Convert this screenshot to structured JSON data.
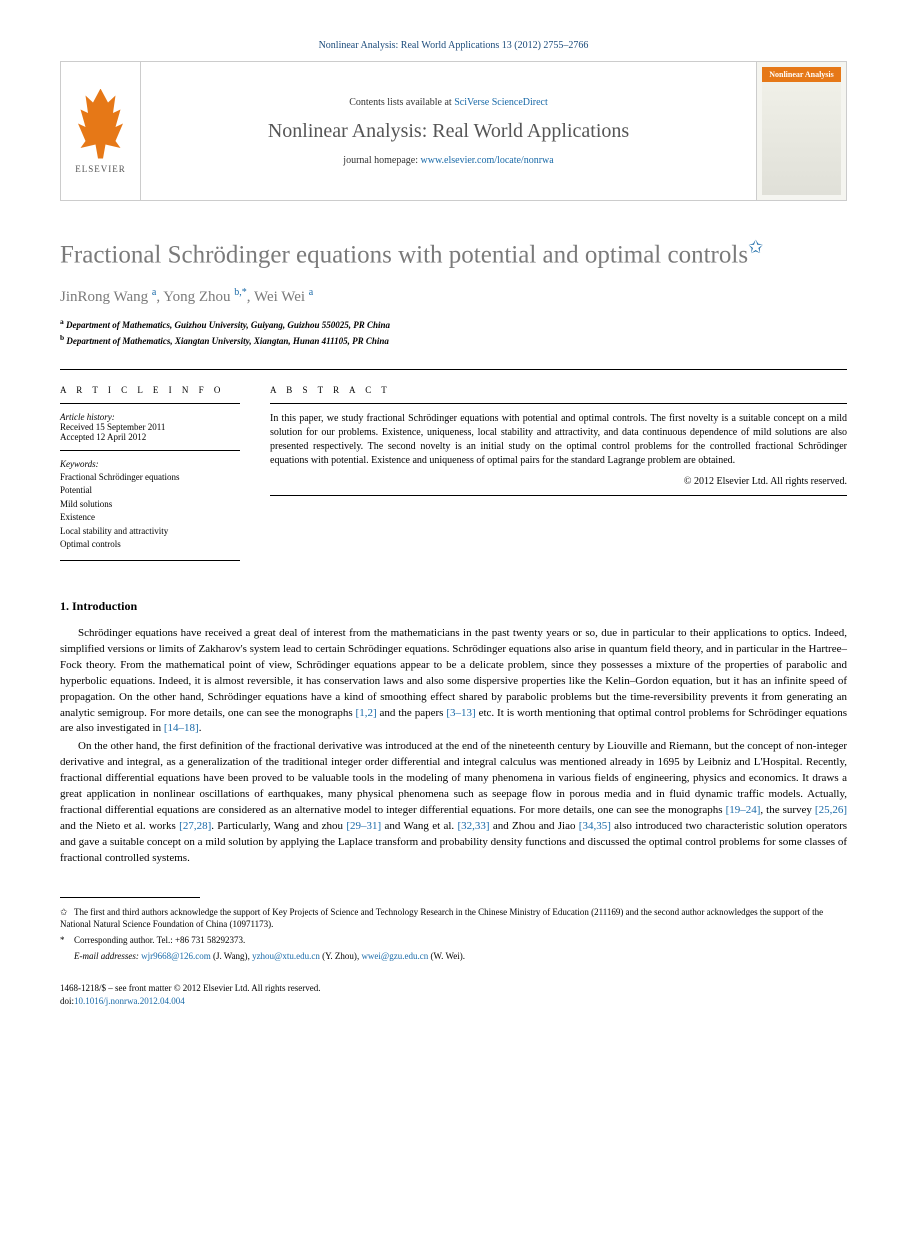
{
  "header": {
    "citation": "Nonlinear Analysis: Real World Applications 13 (2012) 2755–2766"
  },
  "branding": {
    "publisher_logo_label": "ELSEVIER",
    "contents_prefix": "Contents lists available at",
    "contents_link_text": "SciVerse ScienceDirect",
    "journal_name": "Nonlinear Analysis: Real World Applications",
    "homepage_prefix": "journal homepage:",
    "homepage_url": "www.elsevier.com/locate/nonrwa",
    "cover_label": "Nonlinear Analysis"
  },
  "article": {
    "title": "Fractional Schrödinger equations with potential and optimal controls",
    "title_note_marker": "✩",
    "authors_html_parts": [
      {
        "name": "JinRong Wang",
        "marks": "a"
      },
      {
        "name": "Yong Zhou",
        "marks": "b,*"
      },
      {
        "name": "Wei Wei",
        "marks": "a"
      }
    ],
    "affiliations": [
      {
        "mark": "a",
        "text": "Department of Mathematics, Guizhou University, Guiyang, Guizhou 550025, PR China"
      },
      {
        "mark": "b",
        "text": "Department of Mathematics, Xiangtan University, Xiangtan, Hunan 411105, PR China"
      }
    ]
  },
  "info": {
    "section_label": "A R T I C L E   I N F O",
    "history_label": "Article history:",
    "received": "Received 15 September 2011",
    "accepted": "Accepted 12 April 2012",
    "keywords_label": "Keywords:",
    "keywords": [
      "Fractional Schrödinger equations",
      "Potential",
      "Mild solutions",
      "Existence",
      "Local stability and attractivity",
      "Optimal controls"
    ]
  },
  "abstract": {
    "section_label": "A B S T R A C T",
    "text": "In this paper, we study fractional Schrödinger equations with potential and optimal controls. The first novelty is a suitable concept on a mild solution for our problems. Existence, uniqueness, local stability and attractivity, and data continuous dependence of mild solutions are also presented respectively. The second novelty is an initial study on the optimal control problems for the controlled fractional Schrödinger equations with potential. Existence and uniqueness of optimal pairs for the standard Lagrange problem are obtained.",
    "copyright": "© 2012 Elsevier Ltd. All rights reserved."
  },
  "body": {
    "section1_heading": "1. Introduction",
    "para1": "Schrödinger equations have received a great deal of interest from the mathematicians in the past twenty years or so, due in particular to their applications to optics. Indeed, simplified versions or limits of Zakharov's system lead to certain Schrödinger equations. Schrödinger equations also arise in quantum field theory, and in particular in the Hartree–Fock theory. From the mathematical point of view, Schrödinger equations appear to be a delicate problem, since they possesses a mixture of the properties of parabolic and hyperbolic equations. Indeed, it is almost reversible, it has conservation laws and also some dispersive properties like the Kelin–Gordon equation, but it has an infinite speed of propagation. On the other hand, Schrödinger equations have a kind of smoothing effect shared by parabolic problems but the time-reversibility prevents it from generating an analytic semigroup. For more details, one can see the monographs [1,2] and the papers [3–13] etc. It is worth mentioning that optimal control problems for Schrödinger equations are also investigated in [14–18].",
    "para2": "On the other hand, the first definition of the fractional derivative was introduced at the end of the nineteenth century by Liouville and Riemann, but the concept of non-integer derivative and integral, as a generalization of the traditional integer order differential and integral calculus was mentioned already in 1695 by Leibniz and L'Hospital. Recently, fractional differential equations have been proved to be valuable tools in the modeling of many phenomena in various fields of engineering, physics and economics. It draws a great application in nonlinear oscillations of earthquakes, many physical phenomena such as seepage flow in porous media and in fluid dynamic traffic models. Actually, fractional differential equations are considered as an alternative model to integer differential equations. For more details, one can see the monographs [19–24], the survey [25,26] and the Nieto et al. works [27,28]. Particularly, Wang and zhou [29–31] and Wang et al. [32,33] and Zhou and Jiao [34,35] also introduced two characteristic solution operators and gave a suitable concept on a mild solution by applying the Laplace transform and probability density functions and discussed the optimal control problems for some classes of fractional controlled systems."
  },
  "footnotes": {
    "star_note": "The first and third authors acknowledge the support of Key Projects of Science and Technology Research in the Chinese Ministry of Education (211169) and the second author acknowledges the support of the National Natural Science Foundation of China (10971173).",
    "corr_label": "Corresponding author. Tel.: +86 731 58292373.",
    "email_label": "E-mail addresses:",
    "emails": [
      {
        "addr": "wjr9668@126.com",
        "who": "(J. Wang)"
      },
      {
        "addr": "yzhou@xtu.edu.cn",
        "who": "(Y. Zhou)"
      },
      {
        "addr": "wwei@gzu.edu.cn",
        "who": "(W. Wei)"
      }
    ]
  },
  "footer": {
    "issn_line": "1468-1218/$ – see front matter © 2012 Elsevier Ltd. All rights reserved.",
    "doi_label": "doi:",
    "doi_value": "10.1016/j.nonrwa.2012.04.004"
  },
  "colors": {
    "link": "#1a6aa8",
    "accent": "#e67817",
    "title_gray": "#7a7a7a",
    "text": "#000000",
    "border": "#cccccc"
  }
}
